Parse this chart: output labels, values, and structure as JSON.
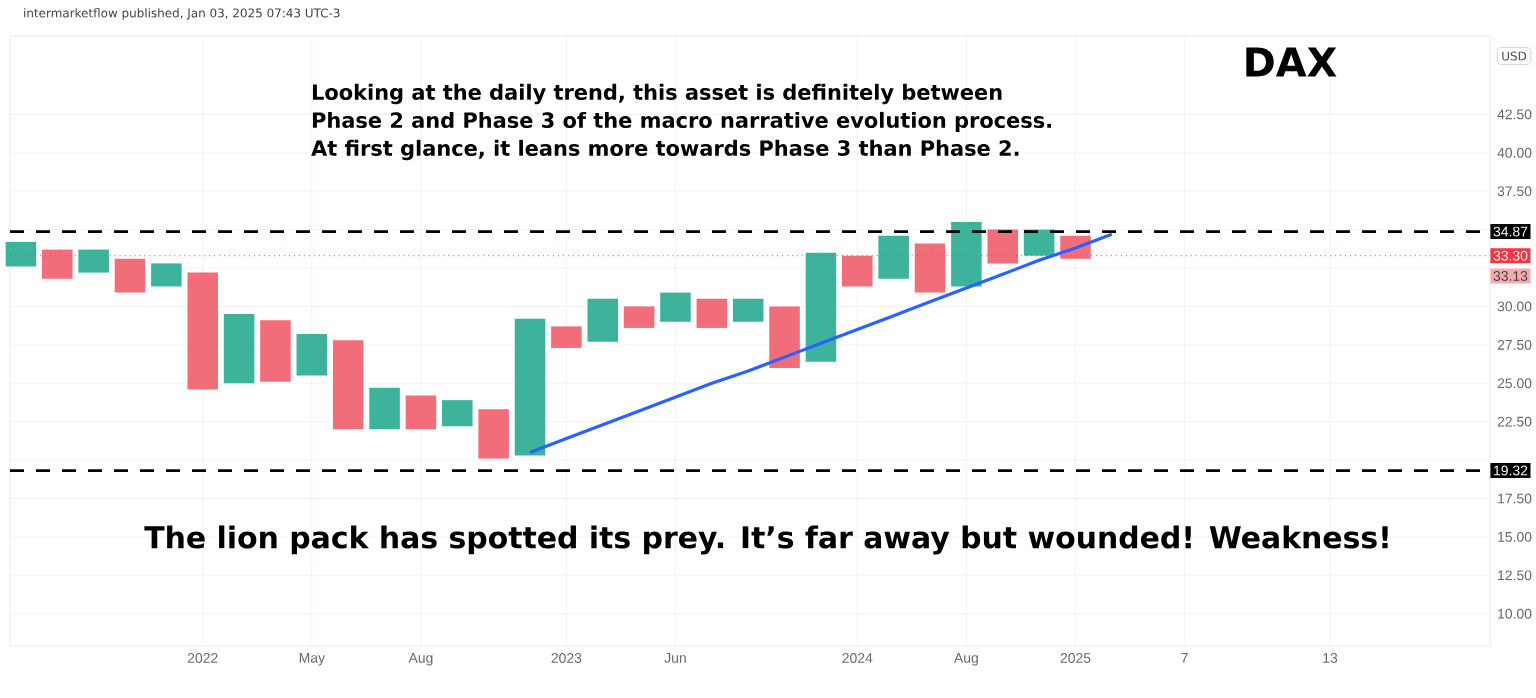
{
  "chart_data": {
    "type": "bar",
    "title": "DAX",
    "annotations": [
      "intermarketflow published, Jan 03, 2025 07:43 UTC-3",
      "Looking at the daily trend, this asset is definitely between",
      "Phase 2 and Phase 3 of the macro narrative evolution process.",
      "At first glance, it leans more towards Phase 3 than Phase 2.",
      "The lion pack has spotted its prey. It’s far away but wounded! Weakness!",
      "USD",
      "33.13"
    ],
    "categories": [
      null,
      null,
      null,
      null,
      null,
      "2022",
      null,
      null,
      "May",
      null,
      null,
      "Aug",
      null,
      null,
      null,
      "2023",
      null,
      null,
      "Jun",
      null,
      null,
      null,
      null,
      "2024",
      null,
      null,
      "Aug",
      null,
      null,
      "2025",
      null,
      null,
      "7",
      null,
      null,
      null,
      "13",
      null,
      null,
      null,
      null
    ],
    "series": [
      {
        "base": [
          32.6,
          31.8,
          32.2,
          30.9,
          31.3,
          24.6,
          25.0,
          25.1,
          25.5,
          22.0,
          22.0,
          22.0,
          22.2,
          20.1,
          20.3,
          27.3,
          27.7,
          28.6,
          29.0,
          28.6,
          29.0,
          26.0,
          26.4,
          31.3,
          31.8,
          30.9,
          31.3,
          32.8,
          33.3,
          33.1,
          null,
          null,
          null,
          null,
          null,
          null,
          null,
          null,
          null,
          null,
          null
        ],
        "values": [
          1.6,
          1.9,
          1.5,
          2.2,
          1.5,
          7.6,
          4.5,
          4.0,
          2.7,
          5.8,
          2.7,
          2.2,
          1.7,
          3.2,
          8.9,
          1.4,
          2.8,
          1.4,
          1.9,
          1.9,
          1.5,
          4.0,
          7.1,
          2.0,
          2.8,
          3.2,
          4.2,
          2.2,
          1.7,
          1.5,
          null,
          null,
          null,
          null,
          null,
          null,
          null,
          null,
          null,
          null,
          null
        ],
        "colors": [
          "#3cb39a",
          "#f26d7a",
          "#3cb39a",
          "#f26d7a",
          "#3cb39a",
          "#f26d7a",
          "#3cb39a",
          "#f26d7a",
          "#3cb39a",
          "#f26d7a",
          "#3cb39a",
          "#f26d7a",
          "#3cb39a",
          "#f26d7a",
          "#3cb39a",
          "#f26d7a",
          "#3cb39a",
          "#f26d7a",
          "#3cb39a",
          "#f26d7a",
          "#3cb39a",
          "#f26d7a",
          "#3cb39a",
          "#f26d7a",
          "#3cb39a",
          "#f26d7a",
          "#3cb39a",
          "#f26d7a",
          "#3cb39a",
          "#f26d7a",
          "#ffffff",
          "#ffffff",
          "#ffffff",
          "#ffffff",
          "#ffffff",
          "#ffffff",
          "#ffffff",
          "#ffffff",
          "#ffffff",
          "#ffffff",
          "#ffffff"
        ]
      },
      {
        "type": "line",
        "values": [
          null,
          null,
          null,
          null,
          null,
          null,
          null,
          null,
          null,
          null,
          null,
          null,
          null,
          null,
          20.5,
          21.4,
          22.3,
          23.2,
          24.1,
          25.0,
          25.8,
          26.7,
          27.6,
          28.5,
          29.4,
          30.3,
          31.2,
          32.1,
          33.0,
          33.8,
          34.7,
          null,
          null,
          null,
          null,
          null,
          null,
          null,
          null,
          null,
          null
        ],
        "color": "#2962ff"
      }
    ],
    "ylim": [
      7.9,
      47.6
    ],
    "yticks": [
      {
        "value": 10,
        "label": "10.00"
      },
      {
        "value": 12.5,
        "label": "12.50"
      },
      {
        "value": 15,
        "label": "15.00"
      },
      {
        "value": 17.5,
        "label": "17.50"
      },
      {
        "value": 20,
        "label": null
      },
      {
        "value": 22.5,
        "label": "22.50"
      },
      {
        "value": 25,
        "label": "25.00"
      },
      {
        "value": 27.5,
        "label": "27.50"
      },
      {
        "value": 30,
        "label": "30.00"
      },
      {
        "value": 32.5,
        "label": null
      },
      {
        "value": 35,
        "label": null
      },
      {
        "value": 37.5,
        "label": "37.50"
      },
      {
        "value": 40,
        "label": "40.00"
      },
      {
        "value": 42.5,
        "label": "42.50"
      }
    ],
    "ref_lines": [
      {
        "axis": "y",
        "value": 34.87,
        "label": "34.87",
        "color": "#000000",
        "line_style": "dashed"
      },
      {
        "axis": "y",
        "value": 33.3,
        "label": "33.30",
        "color": "#f23645",
        "line_style": "dotted"
      },
      {
        "axis": "y",
        "value": 19.32,
        "label": "19.32",
        "color": "#000000",
        "line_style": "dashed"
      }
    ],
    "grid": true
  }
}
